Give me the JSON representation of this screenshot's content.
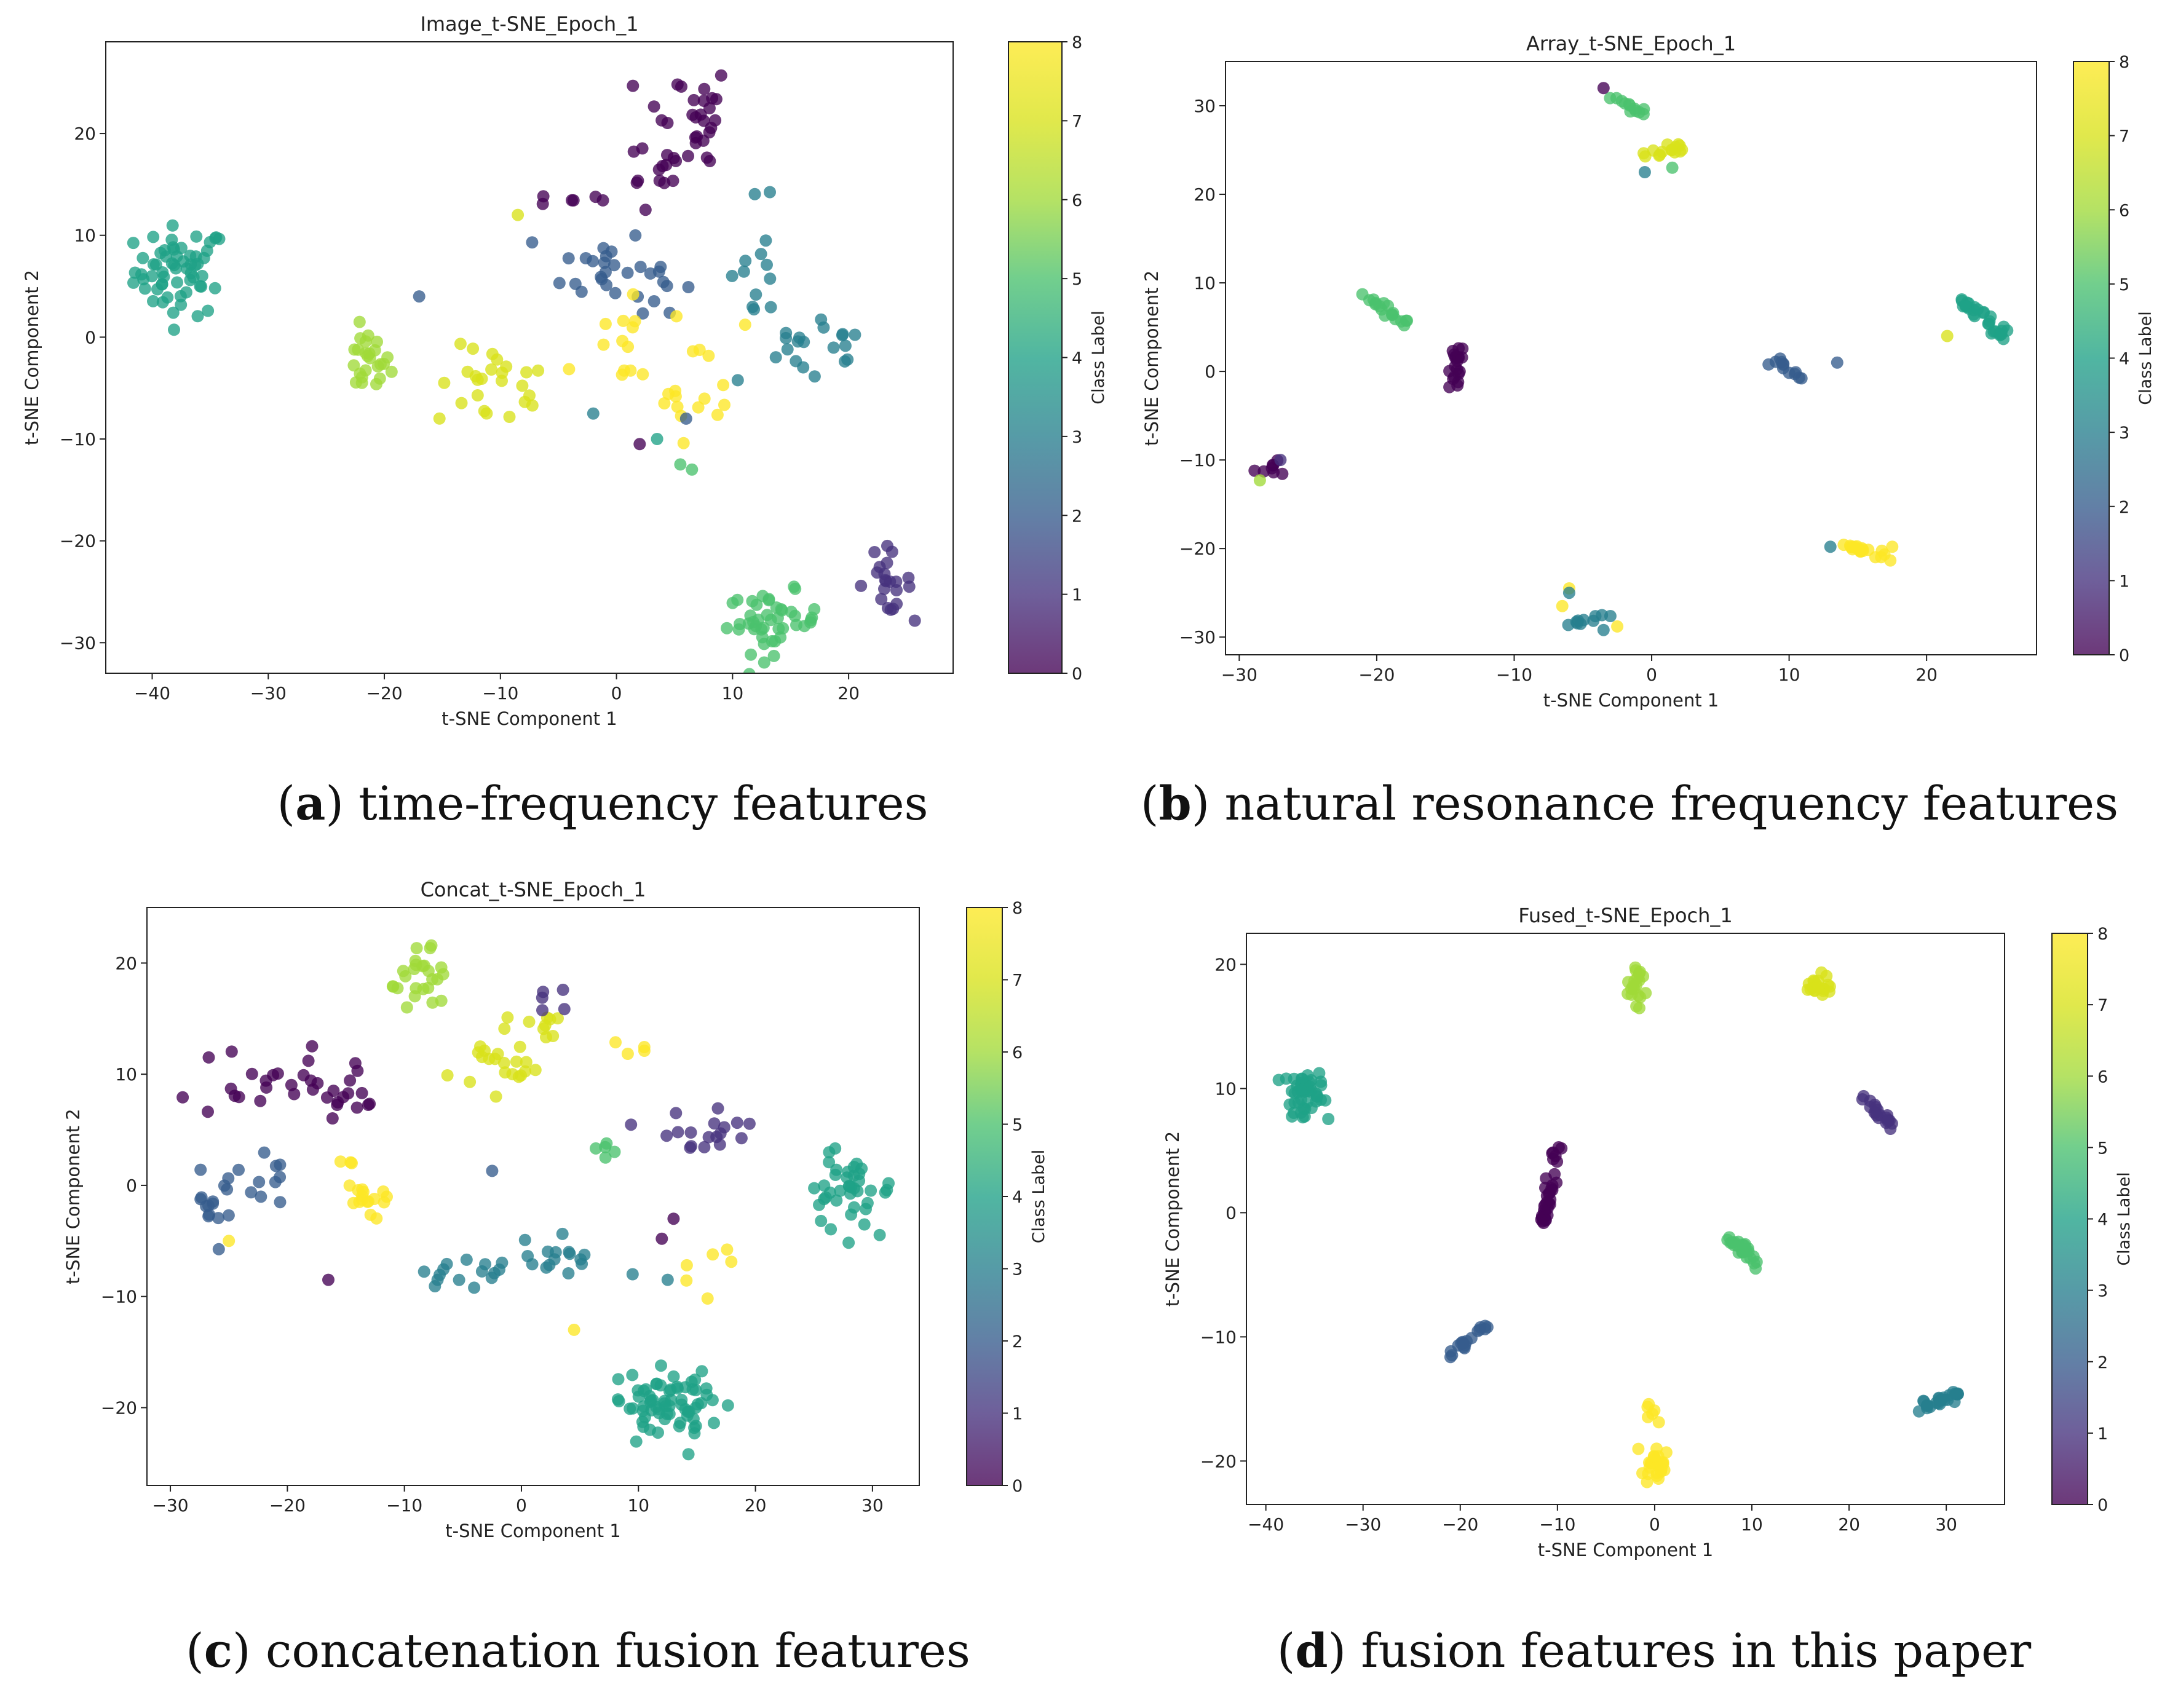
{
  "colormap": "viridis",
  "colorbar_label": "Class Label",
  "captions": [
    {
      "letter": "a",
      "text": "time-frequency features"
    },
    {
      "letter": "b",
      "text": "natural resonance frequency features"
    },
    {
      "letter": "c",
      "text": "concatenation fusion features"
    },
    {
      "letter": "d",
      "text": "fusion features in this paper"
    }
  ],
  "chart_data": [
    {
      "type": "scatter",
      "title": "Image_t-SNE_Epoch_1",
      "xlabel": "t-SNE Component 1",
      "ylabel": "t-SNE Component 2",
      "xlim": [
        -44,
        29
      ],
      "ylim": [
        -33,
        29
      ],
      "xticks": [
        -40,
        -30,
        -20,
        -10,
        0,
        10,
        20
      ],
      "yticks": [
        -30,
        -20,
        -10,
        0,
        10,
        20
      ],
      "colorbar": {
        "label": "Class Label",
        "range": [
          0,
          8
        ],
        "ticks": [
          0,
          1,
          2,
          3,
          4,
          5,
          6,
          7,
          8
        ]
      },
      "clusters": [
        {
          "label": 4,
          "cx": -37.5,
          "cy": 6.5,
          "sx": 2.0,
          "sy": 2.2,
          "n": 60
        },
        {
          "label": 6,
          "cx": -21.5,
          "cy": -2.5,
          "sx": 1.0,
          "sy": 1.6,
          "n": 25
        },
        {
          "label": 7,
          "cx": -10.5,
          "cy": -5.0,
          "sx": 2.5,
          "sy": 2.0,
          "n": 25
        },
        {
          "label": 0,
          "cx": -4.0,
          "cy": 13.5,
          "sx": 1.5,
          "sy": 0.3,
          "n": 6
        },
        {
          "label": 0,
          "cx": 6.0,
          "cy": 22.0,
          "sx": 2.0,
          "sy": 2.5,
          "n": 25
        },
        {
          "label": 0,
          "cx": 4.5,
          "cy": 17.0,
          "sx": 3.0,
          "sy": 1.5,
          "n": 15
        },
        {
          "label": 2,
          "cx": -1.0,
          "cy": 7.0,
          "sx": 1.8,
          "sy": 2.0,
          "n": 20
        },
        {
          "label": 2,
          "cx": 3.5,
          "cy": 5.5,
          "sx": 1.2,
          "sy": 1.5,
          "n": 10
        },
        {
          "label": 3,
          "cx": 12.0,
          "cy": 5.0,
          "sx": 1.5,
          "sy": 4.0,
          "n": 15
        },
        {
          "label": 3,
          "cx": 16.0,
          "cy": 0.0,
          "sx": 1.5,
          "sy": 2.5,
          "n": 12
        },
        {
          "label": 3,
          "cx": 19.5,
          "cy": -1.0,
          "sx": 0.5,
          "sy": 1.5,
          "n": 6
        },
        {
          "label": 8,
          "cx": 1.0,
          "cy": -1.0,
          "sx": 2.5,
          "sy": 3.0,
          "n": 15
        },
        {
          "label": 8,
          "cx": 7.0,
          "cy": -4.0,
          "sx": 2.0,
          "sy": 3.0,
          "n": 15
        },
        {
          "label": 5,
          "cx": 13.5,
          "cy": -28.0,
          "sx": 2.0,
          "sy": 1.5,
          "n": 45
        },
        {
          "label": 1,
          "cx": 23.0,
          "cy": -24.0,
          "sx": 1.2,
          "sy": 1.5,
          "n": 22
        }
      ],
      "points": [
        {
          "x": -8.5,
          "y": 12.0,
          "label": 7
        },
        {
          "x": -17.0,
          "y": 4.0,
          "label": 2
        },
        {
          "x": -2.0,
          "y": -7.5,
          "label": 3
        },
        {
          "x": 2.0,
          "y": -10.5,
          "label": 0
        },
        {
          "x": 3.5,
          "y": -10.0,
          "label": 4
        },
        {
          "x": 5.5,
          "y": -12.5,
          "label": 5
        },
        {
          "x": 6.5,
          "y": -13.0,
          "label": 5
        },
        {
          "x": 6.0,
          "y": -8.0,
          "label": 2
        },
        {
          "x": 2.5,
          "y": 12.5,
          "label": 0
        }
      ]
    },
    {
      "type": "scatter",
      "title": "Array_t-SNE_Epoch_1",
      "xlabel": "t-SNE Component 1",
      "ylabel": "t-SNE Component 2",
      "xlim": [
        -31,
        28
      ],
      "ylim": [
        -32,
        35
      ],
      "xticks": [
        -30,
        -20,
        -10,
        0,
        10,
        20
      ],
      "yticks": [
        -30,
        -20,
        -10,
        0,
        10,
        20,
        30
      ],
      "colorbar": {
        "label": "Class Label",
        "range": [
          0,
          8
        ],
        "ticks": [
          0,
          1,
          2,
          3,
          4,
          5,
          6,
          7,
          8
        ]
      },
      "clusters": [
        {
          "label": 5,
          "line": [
            -3.0,
            31.0,
            -0.5,
            29.0
          ],
          "n": 12
        },
        {
          "label": 7,
          "cx": 1.0,
          "cy": 25.0,
          "sx": 1.0,
          "sy": 0.6,
          "n": 15
        },
        {
          "label": 5,
          "line": [
            -22.0,
            9.5,
            -17.0,
            4.5
          ],
          "n": 18
        },
        {
          "label": 0,
          "line": [
            -14.0,
            3.0,
            -14.5,
            -1.5
          ],
          "n": 20
        },
        {
          "label": 0,
          "cx": -28.0,
          "cy": -11.0,
          "sx": 0.6,
          "sy": 0.6,
          "n": 8
        },
        {
          "label": 4,
          "line": [
            22.5,
            8.0,
            25.8,
            4.0
          ],
          "n": 30
        },
        {
          "label": 2,
          "line": [
            8.5,
            1.5,
            11.5,
            -1.0
          ],
          "n": 12
        },
        {
          "label": 8,
          "line": [
            14.0,
            -19.5,
            17.0,
            -21.0
          ],
          "n": 20
        },
        {
          "label": 3,
          "line": [
            -6.0,
            -28.5,
            -3.5,
            -27.5
          ],
          "n": 10
        }
      ],
      "points": [
        {
          "x": -3.5,
          "y": 32.0,
          "label": 0
        },
        {
          "x": -0.5,
          "y": 22.5,
          "label": 3
        },
        {
          "x": 1.5,
          "y": 23.0,
          "label": 5
        },
        {
          "x": 21.5,
          "y": 4.0,
          "label": 7
        },
        {
          "x": 13.5,
          "y": 1.0,
          "label": 2
        },
        {
          "x": 13.0,
          "y": -19.8,
          "label": 3
        },
        {
          "x": 17.5,
          "y": -19.8,
          "label": 8
        },
        {
          "x": -6.0,
          "y": -24.5,
          "label": 8
        },
        {
          "x": -6.0,
          "y": -25.0,
          "label": 3
        },
        {
          "x": -6.5,
          "y": -26.5,
          "label": 8
        },
        {
          "x": -2.5,
          "y": -28.8,
          "label": 8
        },
        {
          "x": -3.5,
          "y": -29.2,
          "label": 3
        },
        {
          "x": -28.5,
          "y": -12.3,
          "label": 6
        },
        {
          "x": -27.0,
          "y": -10.0,
          "label": 1
        }
      ]
    },
    {
      "type": "scatter",
      "title": "Concat_t-SNE_Epoch_1",
      "xlabel": "t-SNE Component 1",
      "ylabel": "t-SNE Component 2",
      "xlim": [
        -32,
        34
      ],
      "ylim": [
        -27,
        25
      ],
      "xticks": [
        -30,
        -20,
        -10,
        0,
        10,
        20,
        30
      ],
      "yticks": [
        -20,
        -10,
        0,
        10,
        20
      ],
      "colorbar": {
        "label": "Class Label",
        "range": [
          0,
          8
        ],
        "ticks": [
          0,
          1,
          2,
          3,
          4,
          5,
          6,
          7,
          8
        ]
      },
      "clusters": [
        {
          "label": 6,
          "cx": -8.5,
          "cy": 19.0,
          "sx": 1.2,
          "sy": 1.8,
          "n": 25
        },
        {
          "label": 7,
          "cx": -1.5,
          "cy": 11.0,
          "sx": 1.2,
          "sy": 1.3,
          "n": 22
        },
        {
          "label": 7,
          "cx": 1.5,
          "cy": 14.0,
          "sx": 1.5,
          "sy": 0.8,
          "n": 8
        },
        {
          "label": 0,
          "cx": -20.0,
          "cy": 9.0,
          "sx": 4.0,
          "sy": 1.5,
          "n": 25
        },
        {
          "label": 0,
          "cx": -15.0,
          "cy": 7.5,
          "sx": 1.0,
          "sy": 1.5,
          "n": 10
        },
        {
          "label": 2,
          "cx": -27.0,
          "cy": -2.0,
          "sx": 1.2,
          "sy": 1.8,
          "n": 15
        },
        {
          "label": 2,
          "cx": -22.0,
          "cy": 1.0,
          "sx": 1.2,
          "sy": 1.2,
          "n": 10
        },
        {
          "label": 8,
          "cx": -13.5,
          "cy": -1.0,
          "sx": 2.0,
          "sy": 1.8,
          "n": 18
        },
        {
          "label": 3,
          "cx": -5.0,
          "cy": -7.5,
          "sx": 2.5,
          "sy": 1.0,
          "n": 15
        },
        {
          "label": 3,
          "cx": 3.5,
          "cy": -6.5,
          "sx": 2.0,
          "sy": 1.0,
          "n": 15
        },
        {
          "label": 1,
          "cx": 16.5,
          "cy": 5.0,
          "sx": 2.5,
          "sy": 1.3,
          "n": 18
        },
        {
          "label": 4,
          "cx": 28.0,
          "cy": -0.5,
          "sx": 1.8,
          "sy": 1.6,
          "n": 40
        },
        {
          "label": 4,
          "cx": 12.5,
          "cy": -20.0,
          "sx": 2.2,
          "sy": 1.6,
          "n": 70
        },
        {
          "label": 8,
          "cx": 16.5,
          "cy": -8.0,
          "sx": 1.3,
          "sy": 1.2,
          "n": 6
        },
        {
          "label": 5,
          "cx": 7.0,
          "cy": 3.5,
          "sx": 0.5,
          "sy": 0.6,
          "n": 5
        },
        {
          "label": 8,
          "cx": 9.5,
          "cy": 12.2,
          "sx": 1.0,
          "sy": 0.3,
          "n": 4
        },
        {
          "label": 1,
          "cx": 3.0,
          "cy": 16.0,
          "sx": 0.8,
          "sy": 1.2,
          "n": 5
        }
      ],
      "points": [
        {
          "x": -16.5,
          "y": -8.5,
          "label": 0
        },
        {
          "x": -14.5,
          "y": 2.0,
          "label": 8
        },
        {
          "x": -2.5,
          "y": 1.3,
          "label": 2
        },
        {
          "x": 4.5,
          "y": -13.0,
          "label": 8
        },
        {
          "x": 9.5,
          "y": -8.0,
          "label": 3
        },
        {
          "x": 13.0,
          "y": -3.0,
          "label": 0
        },
        {
          "x": 12.0,
          "y": -4.8,
          "label": 0
        },
        {
          "x": 12.5,
          "y": -8.5,
          "label": 3
        },
        {
          "x": -25.0,
          "y": -5.0,
          "label": 8
        }
      ]
    },
    {
      "type": "scatter",
      "title": "Fused_t-SNE_Epoch_1",
      "xlabel": "t-SNE Component 1",
      "ylabel": "t-SNE Component 2",
      "xlim": [
        -42,
        36
      ],
      "ylim": [
        -23.5,
        22.5
      ],
      "xticks": [
        -40,
        -30,
        -20,
        -10,
        0,
        10,
        20,
        30
      ],
      "yticks": [
        -20,
        -10,
        0,
        10,
        20
      ],
      "colorbar": {
        "label": "Class Label",
        "range": [
          0,
          8
        ],
        "ticks": [
          0,
          1,
          2,
          3,
          4,
          5,
          6,
          7,
          8
        ]
      },
      "clusters": [
        {
          "label": 4,
          "cx": -36.0,
          "cy": 9.5,
          "sx": 1.2,
          "sy": 0.9,
          "n": 50
        },
        {
          "label": 6,
          "cx": -2.0,
          "cy": 18.5,
          "sx": 0.5,
          "sy": 0.9,
          "n": 20
        },
        {
          "label": 7,
          "cx": 16.5,
          "cy": 18.2,
          "sx": 0.8,
          "sy": 0.5,
          "n": 20
        },
        {
          "label": 1,
          "line": [
            21.0,
            9.5,
            24.5,
            7.0
          ],
          "n": 20
        },
        {
          "label": 0,
          "line": [
            -11.5,
            -1.0,
            -9.8,
            5.5
          ],
          "n": 35
        },
        {
          "label": 5,
          "line": [
            7.5,
            -2.0,
            10.5,
            -4.0
          ],
          "n": 25
        },
        {
          "label": 2,
          "line": [
            -21.0,
            -11.5,
            -16.5,
            -8.5
          ],
          "n": 18
        },
        {
          "label": 3,
          "line": [
            26.5,
            -16.0,
            31.5,
            -14.5
          ],
          "n": 25
        },
        {
          "label": 8,
          "cx": 0.0,
          "cy": -20.5,
          "sx": 0.8,
          "sy": 0.6,
          "n": 25
        },
        {
          "label": 8,
          "line": [
            -0.5,
            -15.5,
            0.5,
            -17.0
          ],
          "n": 6
        }
      ],
      "points": []
    }
  ]
}
